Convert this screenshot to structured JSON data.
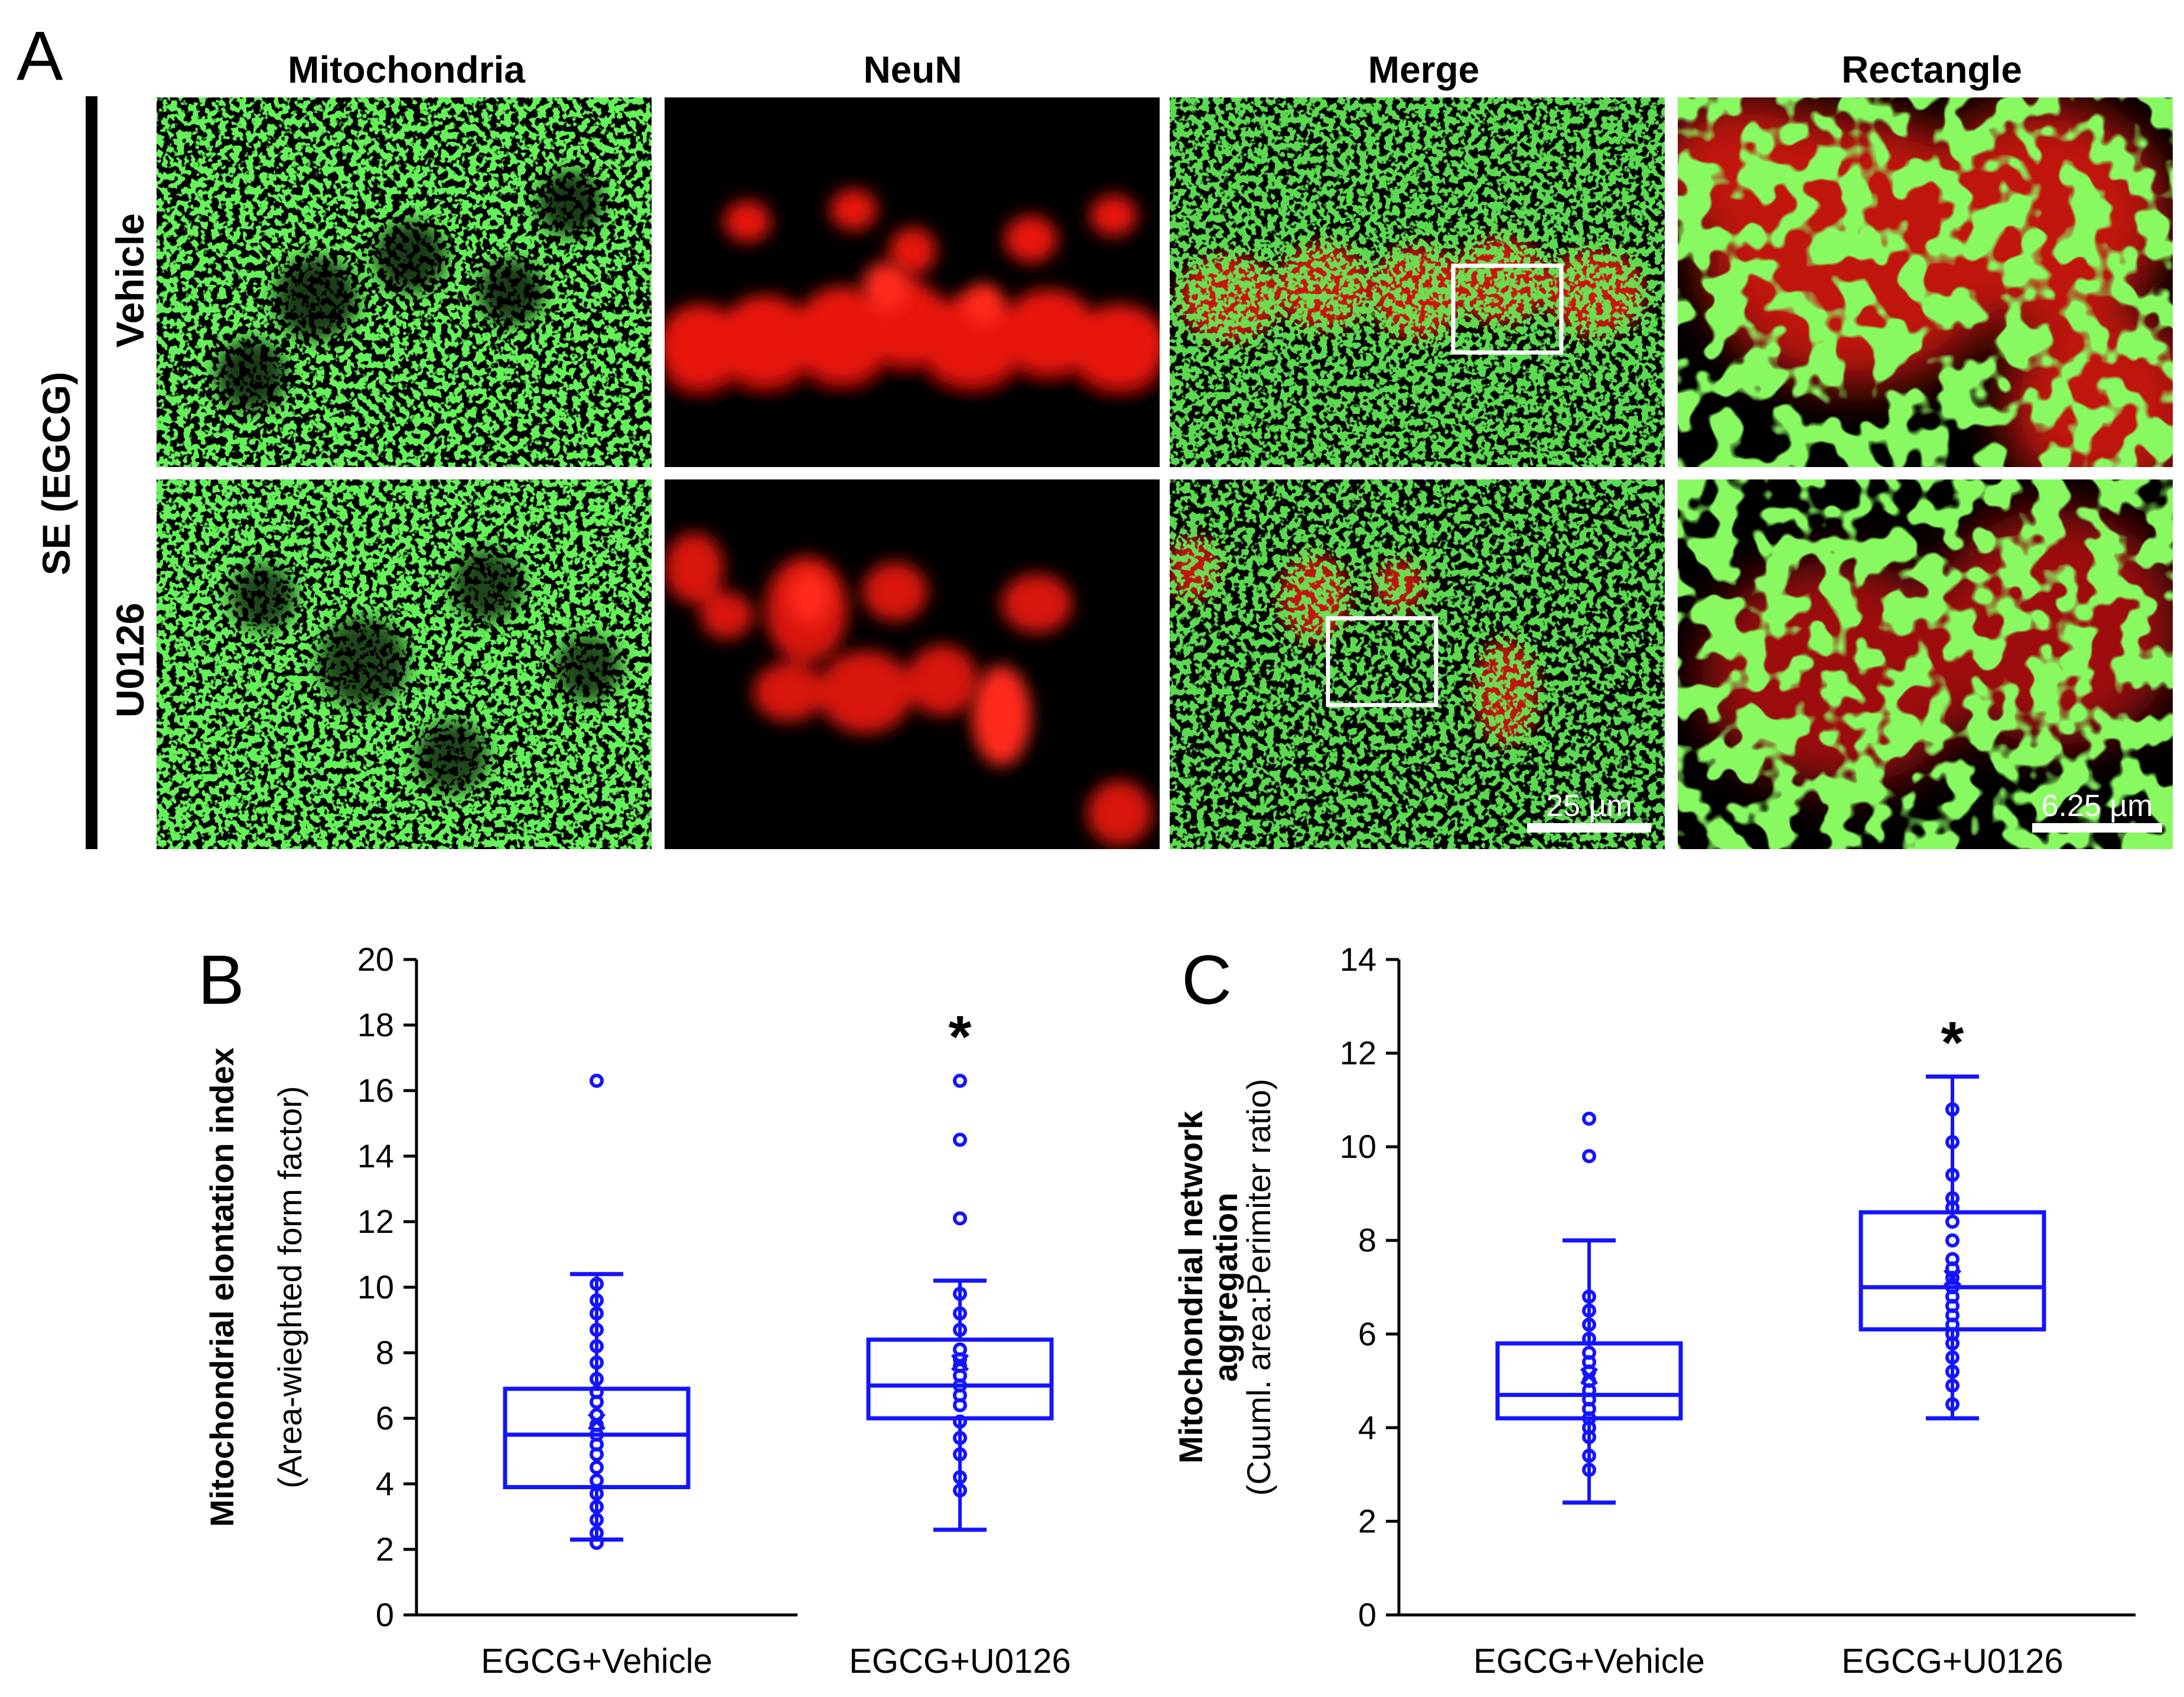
{
  "panel_labels": {
    "a": "A",
    "b": "B",
    "c": "C"
  },
  "panel_a": {
    "columns": [
      "Mitochondria",
      "NeuN",
      "Merge",
      "Rectangle"
    ],
    "side_label": "SE (EGCG)",
    "rows": [
      "Vehicle",
      "U0126"
    ],
    "scale_bars": {
      "merge": "25 µm",
      "rectangle": "6.25 µm"
    },
    "colors": {
      "mitochondria": "#22e01a",
      "neun": "#e8190f",
      "background": "#000000"
    }
  },
  "chart_data": [
    {
      "type": "box",
      "panel": "B",
      "categories": [
        "EGCG+Vehicle",
        "EGCG+U0126"
      ],
      "ylabel": "Mitochondrial elontation index",
      "ylabel_sub": "(Area-wieghted form factor)",
      "ylim": [
        0,
        20
      ],
      "yticks": [
        0,
        2,
        4,
        6,
        8,
        10,
        12,
        14,
        16,
        18,
        20
      ],
      "color": "#1414ff",
      "significance": [
        "",
        "*"
      ],
      "boxes": [
        {
          "min": 2.3,
          "q1": 3.9,
          "median": 5.5,
          "q3": 6.9,
          "max": 10.4,
          "mean": 5.9,
          "points": [
            2.2,
            2.5,
            2.9,
            3.3,
            3.7,
            4.1,
            4.5,
            4.9,
            5.2,
            5.5,
            5.8,
            6.1,
            6.5,
            6.8,
            7.2,
            7.7,
            8.2,
            8.7,
            9.2,
            9.6,
            10.1,
            16.3
          ]
        },
        {
          "min": 2.6,
          "q1": 6.0,
          "median": 7.0,
          "q3": 8.4,
          "max": 10.2,
          "mean": 7.7,
          "points": [
            3.8,
            4.2,
            4.9,
            5.4,
            5.9,
            6.4,
            6.7,
            7.0,
            7.3,
            7.6,
            7.8,
            8.1,
            8.7,
            9.2,
            9.8,
            12.1,
            14.5,
            16.3
          ]
        }
      ]
    },
    {
      "type": "box",
      "panel": "C",
      "categories": [
        "EGCG+Vehicle",
        "EGCG+U0126"
      ],
      "ylabel": "Mitochondrial network aggregation",
      "ylabel_sub": "(Cuuml. area:Perimiter ratio)",
      "ylim": [
        0,
        14
      ],
      "yticks": [
        0,
        2,
        4,
        6,
        8,
        10,
        12,
        14
      ],
      "color": "#1414ff",
      "significance": [
        "",
        "*"
      ],
      "boxes": [
        {
          "min": 2.4,
          "q1": 4.2,
          "median": 4.7,
          "q3": 5.8,
          "max": 8.0,
          "mean": 5.1,
          "points": [
            3.1,
            3.4,
            3.8,
            4.0,
            4.2,
            4.4,
            4.6,
            4.8,
            5.0,
            5.2,
            5.4,
            5.6,
            5.9,
            6.2,
            6.5,
            6.8,
            9.8,
            10.6
          ]
        },
        {
          "min": 4.2,
          "q1": 6.1,
          "median": 7.0,
          "q3": 8.6,
          "max": 11.5,
          "mean": 7.2,
          "points": [
            4.5,
            4.9,
            5.2,
            5.5,
            5.8,
            6.0,
            6.2,
            6.4,
            6.6,
            6.8,
            7.0,
            7.2,
            7.4,
            7.6,
            8.0,
            8.4,
            8.7,
            8.9,
            9.4,
            10.1,
            10.8
          ]
        }
      ]
    }
  ]
}
